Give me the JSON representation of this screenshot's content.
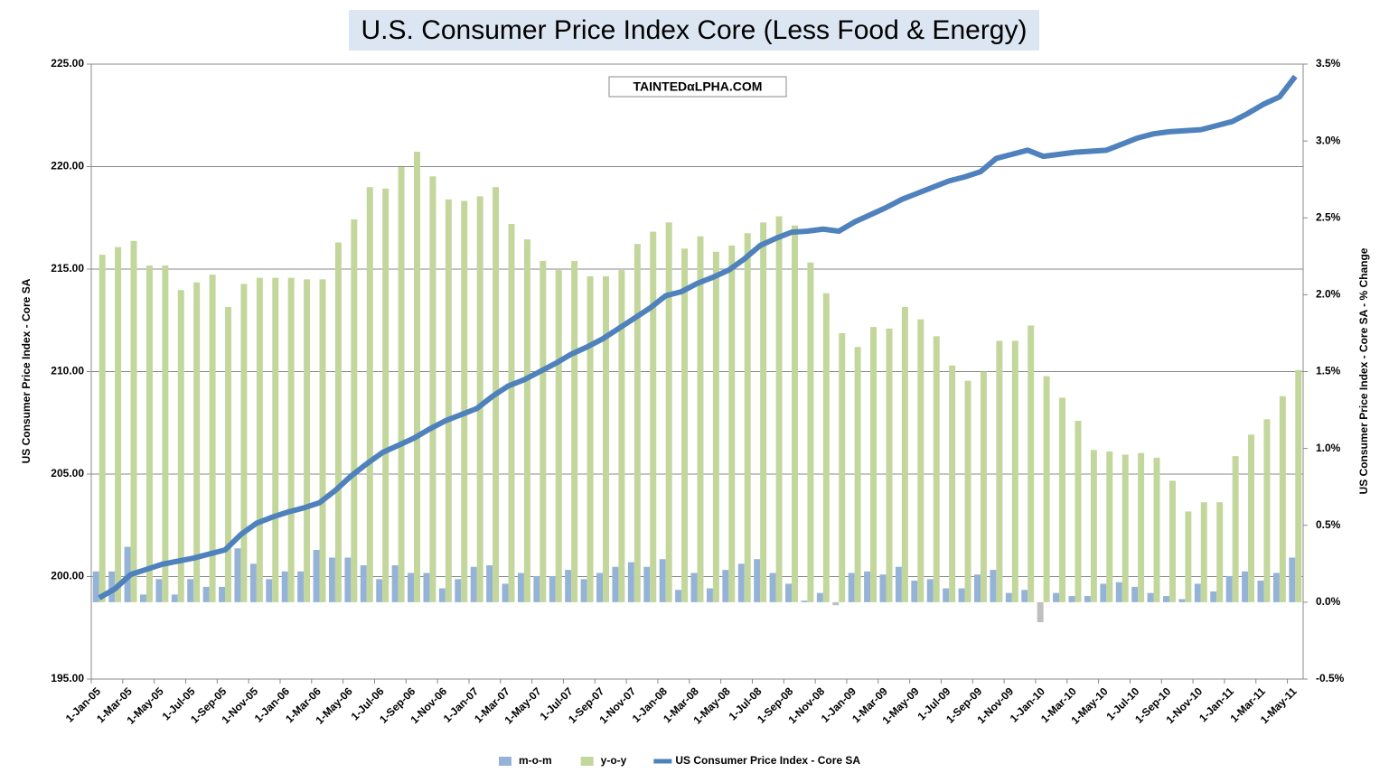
{
  "chart_data": {
    "type": "bar",
    "title": "U.S. Consumer Price Index Core (Less Food & Energy)",
    "watermark": "TAINTEDαLPHA.COM",
    "y_label": "US Consumer Price Index - Core SA",
    "y2_label": "US Consumer Price Index - Core SA - % Change",
    "categories": [
      "1-Jan-05",
      null,
      "1-Mar-05",
      null,
      "1-May-05",
      null,
      "1-Jul-05",
      null,
      "1-Sep-05",
      null,
      "1-Nov-05",
      null,
      "1-Jan-06",
      null,
      "1-Mar-06",
      null,
      "1-May-06",
      null,
      "1-Jul-06",
      null,
      "1-Sep-06",
      null,
      "1-Nov-06",
      null,
      "1-Jan-07",
      null,
      "1-Mar-07",
      null,
      "1-May-07",
      null,
      "1-Jul-07",
      null,
      "1-Sep-07",
      null,
      "1-Nov-07",
      null,
      "1-Jan-08",
      null,
      "1-Mar-08",
      null,
      "1-May-08",
      null,
      "1-Jul-08",
      null,
      "1-Sep-08",
      null,
      "1-Nov-08",
      null,
      "1-Jan-09",
      null,
      "1-Mar-09",
      null,
      "1-May-09",
      null,
      "1-Jul-09",
      null,
      "1-Sep-09",
      null,
      "1-Nov-09",
      null,
      "1-Jan-10",
      null,
      "1-Mar-10",
      null,
      "1-May-10",
      null,
      "1-Jul-10",
      null,
      "1-Sep-10",
      null,
      "1-Nov-10",
      null,
      "1-Jan-11",
      null,
      "1-Mar-11",
      null,
      "1-May-11"
    ],
    "series": [
      {
        "name": "m-o-m",
        "type": "bar",
        "axis": "y2",
        "color": "#95b3d7",
        "values": [
          0.2,
          0.2,
          0.36,
          0.05,
          0.15,
          0.05,
          0.15,
          0.1,
          0.1,
          0.35,
          0.25,
          0.15,
          0.2,
          0.2,
          0.34,
          0.29,
          0.29,
          0.24,
          0.15,
          0.24,
          0.19,
          0.19,
          0.09,
          0.15,
          0.23,
          0.24,
          0.12,
          0.19,
          0.17,
          0.17,
          0.21,
          0.15,
          0.19,
          0.23,
          0.26,
          0.23,
          0.28,
          0.08,
          0.19,
          0.09,
          0.21,
          0.25,
          0.28,
          0.19,
          0.12,
          0.01,
          0.06,
          -0.02,
          0.19,
          0.2,
          0.18,
          0.23,
          0.14,
          0.15,
          0.09,
          0.09,
          0.18,
          0.21,
          0.06,
          0.08,
          -0.13,
          0.06,
          0.04,
          0.04,
          0.12,
          0.13,
          0.1,
          0.06,
          0.04,
          0.02,
          0.12,
          0.07,
          0.17,
          0.2,
          0.14,
          0.19,
          0.29
        ]
      },
      {
        "name": "y-o-y",
        "type": "bar",
        "axis": "y2",
        "color": "#c3d69b",
        "values": [
          2.26,
          2.31,
          2.35,
          2.19,
          2.19,
          2.03,
          2.08,
          2.13,
          1.92,
          2.07,
          2.11,
          2.11,
          2.11,
          2.1,
          2.1,
          2.34,
          2.49,
          2.7,
          2.69,
          2.83,
          2.93,
          2.77,
          2.62,
          2.61,
          2.64,
          2.7,
          2.46,
          2.36,
          2.22,
          2.16,
          2.22,
          2.12,
          2.12,
          2.16,
          2.33,
          2.41,
          2.47,
          2.3,
          2.38,
          2.28,
          2.32,
          2.4,
          2.47,
          2.51,
          2.45,
          2.21,
          2.01,
          1.75,
          1.66,
          1.79,
          1.78,
          1.92,
          1.84,
          1.73,
          1.54,
          1.44,
          1.5,
          1.7,
          1.7,
          1.8,
          1.47,
          1.33,
          1.18,
          0.99,
          0.98,
          0.96,
          0.97,
          0.94,
          0.79,
          0.59,
          0.65,
          0.65,
          0.95,
          1.09,
          1.19,
          1.34,
          1.51
        ]
      },
      {
        "name": "US Consumer Price Index - Core SA",
        "type": "line",
        "axis": "y",
        "color": "#4f81bd",
        "values": [
          198.96,
          199.4,
          200.1,
          200.35,
          200.6,
          200.75,
          200.9,
          201.1,
          201.3,
          202.05,
          202.6,
          202.9,
          203.15,
          203.35,
          203.6,
          204.2,
          204.9,
          205.5,
          206.05,
          206.4,
          206.75,
          207.2,
          207.6,
          207.9,
          208.2,
          208.8,
          209.3,
          209.6,
          210.0,
          210.4,
          210.85,
          211.2,
          211.6,
          212.1,
          212.6,
          213.1,
          213.7,
          213.9,
          214.3,
          214.6,
          214.95,
          215.5,
          216.15,
          216.5,
          216.8,
          216.85,
          216.95,
          216.85,
          217.3,
          217.65,
          218.0,
          218.4,
          218.7,
          219.0,
          219.3,
          219.5,
          219.75,
          220.4,
          220.6,
          220.8,
          220.5,
          220.6,
          220.7,
          220.75,
          220.8,
          221.1,
          221.4,
          221.6,
          221.7,
          221.75,
          221.8,
          222.0,
          222.2,
          222.6,
          223.05,
          223.4,
          224.4
        ]
      }
    ],
    "ylim": [
      195,
      225
    ],
    "yticks": [
      {
        "value": 195,
        "label": "195.00"
      },
      {
        "value": 200,
        "label": "200.00"
      },
      {
        "value": 205,
        "label": "205.00"
      },
      {
        "value": 210,
        "label": "210.00"
      },
      {
        "value": 215,
        "label": "215.00"
      },
      {
        "value": 220,
        "label": "220.00"
      },
      {
        "value": 225,
        "label": "225.00"
      }
    ],
    "y2lim": [
      -0.5,
      3.5
    ],
    "y2ticks": [
      {
        "value": -0.5,
        "label": "-0.5%"
      },
      {
        "value": 0,
        "label": "0.0%"
      },
      {
        "value": 0.5,
        "label": "0.5%"
      },
      {
        "value": 1,
        "label": "1.0%"
      },
      {
        "value": 1.5,
        "label": "1.5%"
      },
      {
        "value": 2,
        "label": "2.0%"
      },
      {
        "value": 2.5,
        "label": "2.5%"
      },
      {
        "value": 3,
        "label": "3.0%"
      },
      {
        "value": 3.5,
        "label": "3.5%"
      }
    ],
    "grid": true,
    "legend": "bottom"
  }
}
